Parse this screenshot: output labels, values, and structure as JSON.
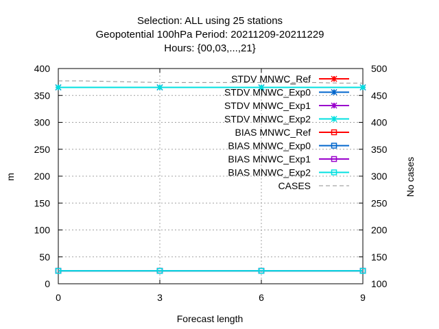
{
  "chart_data": {
    "type": "line",
    "title_lines": [
      "Selection: ALL using    25 stations",
      "Geopotential 100hPa   Period: 20211209-20211229",
      "Hours: {00,03,...,21}"
    ],
    "xlabel": "Forecast length",
    "ylabel": "m",
    "y2label": "No cases",
    "x": [
      0,
      3,
      6,
      9
    ],
    "xlim": [
      0,
      9
    ],
    "xticks": [
      0,
      3,
      6,
      9
    ],
    "ylim": [
      0,
      400
    ],
    "yticks": [
      0,
      50,
      100,
      150,
      200,
      250,
      300,
      350,
      400
    ],
    "y2lim": [
      100,
      500
    ],
    "y2ticks": [
      100,
      150,
      200,
      250,
      300,
      350,
      400,
      450,
      500
    ],
    "grid": true,
    "legend_position": "top-right",
    "series": [
      {
        "name": "STDV MNWC_Ref",
        "axis": "y1",
        "marker": "star",
        "color": "#ff0000",
        "values": [
          365,
          365,
          365,
          365
        ]
      },
      {
        "name": "STDV MNWC_Exp0",
        "axis": "y1",
        "marker": "star",
        "color": "#0066cc",
        "values": [
          365,
          365,
          365,
          365
        ]
      },
      {
        "name": "STDV MNWC_Exp1",
        "axis": "y1",
        "marker": "star",
        "color": "#9900cc",
        "values": [
          365,
          365,
          365,
          365
        ]
      },
      {
        "name": "STDV MNWC_Exp2",
        "axis": "y1",
        "marker": "star",
        "color": "#00e0e0",
        "values": [
          365,
          365,
          365,
          365
        ]
      },
      {
        "name": "BIAS MNWC_Ref",
        "axis": "y1",
        "marker": "square",
        "color": "#ff0000",
        "values": [
          24,
          24,
          24,
          24
        ]
      },
      {
        "name": "BIAS MNWC_Exp0",
        "axis": "y1",
        "marker": "square",
        "color": "#0066cc",
        "values": [
          24,
          24,
          24,
          24
        ]
      },
      {
        "name": "BIAS MNWC_Exp1",
        "axis": "y1",
        "marker": "square",
        "color": "#9900cc",
        "values": [
          24,
          24,
          24,
          24
        ]
      },
      {
        "name": "BIAS MNWC_Exp2",
        "axis": "y1",
        "marker": "square",
        "color": "#00e0e0",
        "values": [
          24,
          24,
          24,
          24
        ]
      },
      {
        "name": "CASES",
        "axis": "y2",
        "marker": "none",
        "color": "#8c8c8c",
        "dashed": true,
        "x": [
          0,
          0.75,
          1.5,
          2.25,
          3,
          3.75,
          4.5,
          5.25,
          6,
          6.75,
          7.5,
          8.25,
          9
        ],
        "values": [
          477,
          477,
          476,
          475,
          474,
          474,
          474,
          474,
          474,
          474,
          474,
          473,
          473
        ]
      }
    ]
  }
}
